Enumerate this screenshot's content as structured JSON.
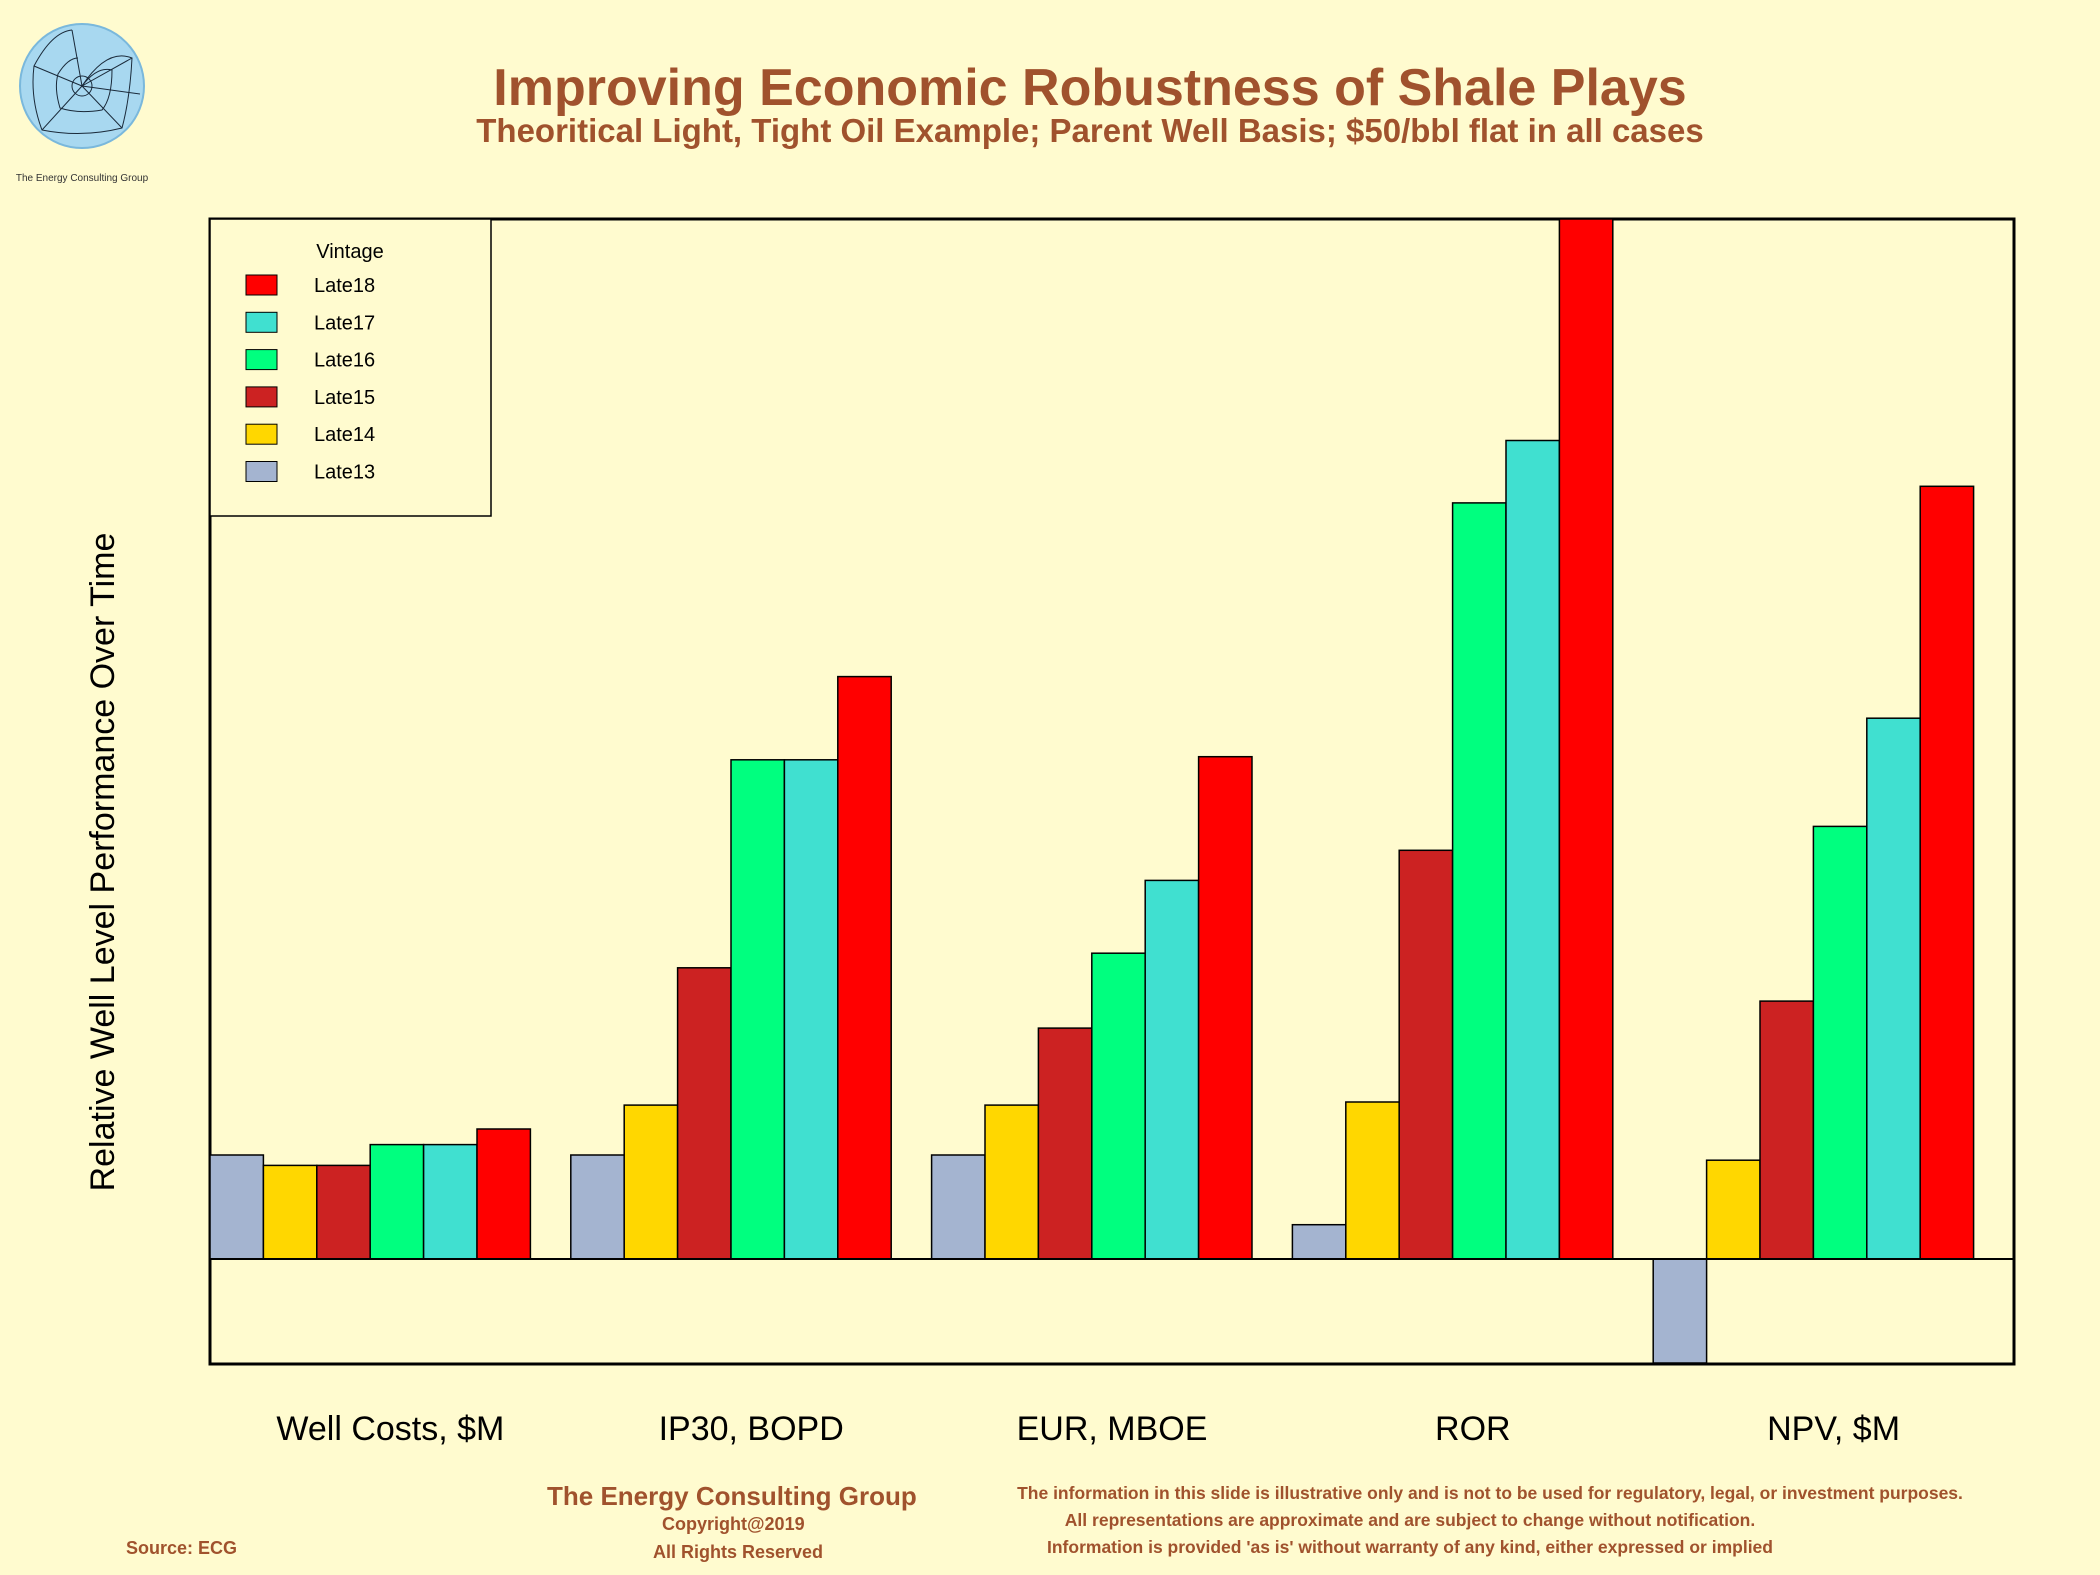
{
  "header": {
    "title": "Improving Economic Robustness of Shale Plays",
    "subtitle": "Theoritical Light, Tight Oil Example; Parent Well Basis; $50/bbl flat in all cases",
    "logo_text": "The Energy Consulting Group"
  },
  "chart_data": {
    "type": "bar",
    "ylabel": "Relative Well Level Performance Over Time",
    "categories": [
      "Well Costs, $M",
      "IP30, BOPD",
      "EUR, MBOE",
      "ROR",
      "NPV, $M"
    ],
    "legend": {
      "title": "Vintage",
      "placement": "top-left"
    },
    "ylim": [
      -1,
      10
    ],
    "grid": false,
    "series": [
      {
        "name": "Late13",
        "color": "#a4b4d0",
        "values": [
          1.0,
          1.0,
          1.0,
          0.33,
          -1.0
        ]
      },
      {
        "name": "Late14",
        "color": "#ffd700",
        "values": [
          0.9,
          1.48,
          1.48,
          1.51,
          0.95
        ]
      },
      {
        "name": "Late15",
        "color": "#cc2222",
        "values": [
          0.9,
          2.8,
          2.22,
          3.93,
          2.48
        ]
      },
      {
        "name": "Late16",
        "color": "#00ff7f",
        "values": [
          1.1,
          4.8,
          2.94,
          7.27,
          4.16
        ]
      },
      {
        "name": "Late17",
        "color": "#40e0d0",
        "values": [
          1.1,
          4.8,
          3.64,
          7.87,
          5.2
        ]
      },
      {
        "name": "Late18",
        "color": "#ff0000",
        "values": [
          1.25,
          5.6,
          4.83,
          10.0,
          7.43
        ]
      }
    ]
  },
  "footer": {
    "company": "The Energy Consulting Group",
    "copyright": "Copyright@2019",
    "rights": "All Rights Reserved",
    "source": "Source: ECG",
    "disclaimer": [
      "The information in this slide is illustrative only and is not to be used for regulatory, legal, or investment purposes.",
      "All representations are approximate and are subject to change without notification.",
      "Information is provided 'as is' without warranty of any kind, either expressed or implied"
    ]
  }
}
